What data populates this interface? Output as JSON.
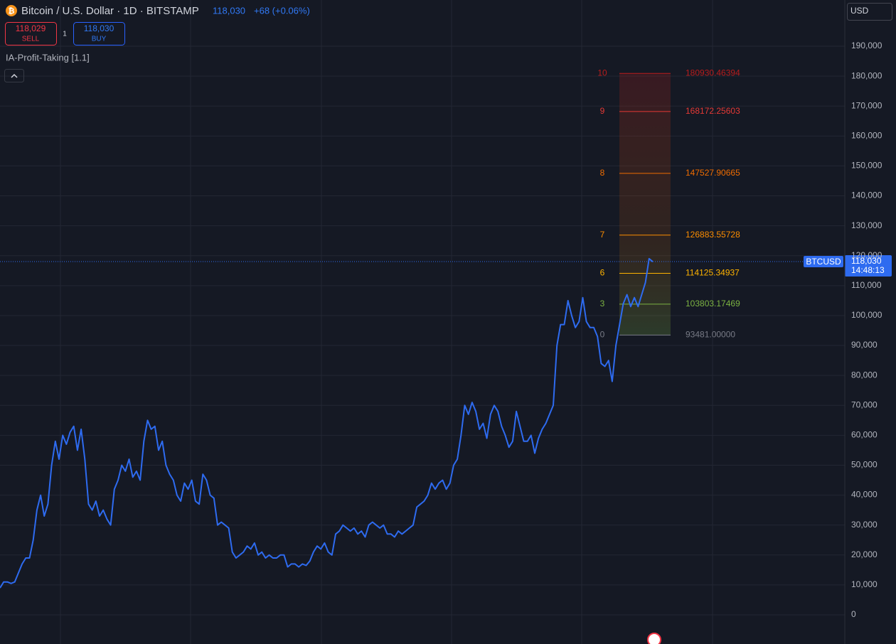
{
  "header": {
    "title": "Bitcoin / U.S. Dollar · 1D · BITSTAMP",
    "change": "+68 (+0.06%)",
    "indicator": "IA-Profit-Taking [1.1]",
    "currency": "USD"
  },
  "order_panel": {
    "sell_price": "118,029",
    "sell": "SELL",
    "quantity": "1",
    "buy_price": "118,030",
    "buy": "BUY"
  },
  "chart_data": {
    "type": "line",
    "series": [
      {
        "name": "BTCUSD",
        "color": "#2e6bf0",
        "values": [
          9000,
          11000,
          11000,
          10500,
          11000,
          14000,
          17000,
          19000,
          19000,
          25000,
          35000,
          40000,
          33000,
          37000,
          50000,
          58000,
          52000,
          60000,
          57000,
          61000,
          63000,
          55000,
          62000,
          52000,
          37000,
          35000,
          38000,
          33000,
          35000,
          32000,
          30000,
          42000,
          45000,
          50000,
          48000,
          52000,
          46000,
          48000,
          45000,
          58000,
          65000,
          62000,
          63000,
          55000,
          58000,
          50000,
          47000,
          45000,
          40000,
          38000,
          44000,
          42000,
          45000,
          38000,
          37000,
          47000,
          45000,
          40000,
          39000,
          30000,
          31000,
          30000,
          29000,
          21000,
          19000,
          20000,
          21000,
          23000,
          22000,
          24000,
          20000,
          21000,
          19000,
          20000,
          19000,
          19000,
          20000,
          20000,
          16000,
          17000,
          17000,
          16000,
          17000,
          16500,
          18000,
          21000,
          23000,
          22000,
          24000,
          21000,
          20000,
          27000,
          28000,
          30000,
          29000,
          28000,
          29000,
          27000,
          28000,
          26000,
          30000,
          31000,
          30000,
          29000,
          30000,
          27000,
          27000,
          26000,
          28000,
          27000,
          28000,
          29000,
          30000,
          36000,
          37000,
          38000,
          40000,
          44000,
          42000,
          44000,
          45000,
          42000,
          44000,
          50000,
          52000,
          60000,
          70000,
          67000,
          71000,
          68000,
          62000,
          64000,
          59000,
          67000,
          70000,
          68000,
          63000,
          60000,
          56000,
          58000,
          68000,
          63000,
          58000,
          58000,
          60000,
          54000,
          59000,
          62000,
          64000,
          67000,
          70000,
          90000,
          97000,
          97000,
          105000,
          100000,
          96000,
          98000,
          106000,
          98000,
          96000,
          96000,
          93000,
          84000,
          83000,
          85000,
          78000,
          90000,
          97000,
          104000,
          107000,
          103000,
          106000,
          103000,
          107000,
          111000,
          119000,
          118000
        ]
      }
    ],
    "ylim": [
      -9740,
      205440
    ],
    "yticks": [
      {
        "value": 0,
        "label": "0"
      },
      {
        "value": 10000,
        "label": "10,000"
      },
      {
        "value": 20000,
        "label": "20,000"
      },
      {
        "value": 30000,
        "label": "30,000"
      },
      {
        "value": 40000,
        "label": "40,000"
      },
      {
        "value": 50000,
        "label": "50,000"
      },
      {
        "value": 60000,
        "label": "60,000"
      },
      {
        "value": 70000,
        "label": "70,000"
      },
      {
        "value": 80000,
        "label": "80,000"
      },
      {
        "value": 90000,
        "label": "90,000"
      },
      {
        "value": 100000,
        "label": "100,000"
      },
      {
        "value": 110000,
        "label": "110,000"
      },
      {
        "value": 120000,
        "label": "120,000"
      },
      {
        "value": 130000,
        "label": "130,000"
      },
      {
        "value": 140000,
        "label": "140,000"
      },
      {
        "value": 150000,
        "label": "150,000"
      },
      {
        "value": 160000,
        "label": "160,000"
      },
      {
        "value": 170000,
        "label": "170,000"
      },
      {
        "value": 180000,
        "label": "180,000"
      },
      {
        "value": 190000,
        "label": "190,000"
      }
    ],
    "grid": true,
    "price_line": {
      "value": 118030,
      "label": "118,030",
      "time": "14:48:13"
    },
    "levels": {
      "names": [
        "10",
        "9",
        "8",
        "7",
        "6",
        "3",
        "0"
      ],
      "values": [
        180930.46394,
        168172.25603,
        147527.90665,
        126883.55728,
        114125.34937,
        103803.17469,
        93481
      ],
      "value_labels": [
        "180930.46394",
        "168172.25603",
        "147527.90665",
        "126883.55728",
        "114125.34937",
        "103803.17469",
        "93481.00000"
      ],
      "colors": [
        "#b71c1c",
        "#e53935",
        "#ef6c00",
        "#fb8c00",
        "#ffb300",
        "#7cb342",
        "#787b86"
      ]
    }
  }
}
